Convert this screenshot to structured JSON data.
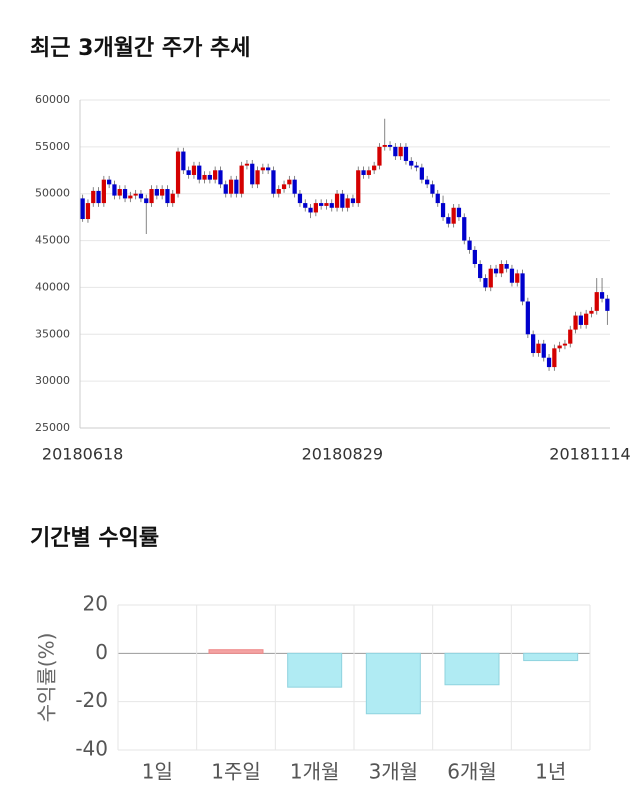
{
  "chart_data": [
    {
      "type": "candlestick",
      "title": "최근 3개월간 주가 추세",
      "categories": [
        "20180618",
        null,
        null,
        null,
        null,
        null,
        null,
        null,
        null,
        null,
        null,
        null,
        null,
        null,
        null,
        null,
        null,
        null,
        null,
        null,
        null,
        null,
        null,
        null,
        null,
        null,
        null,
        null,
        null,
        null,
        null,
        null,
        null,
        null,
        null,
        null,
        null,
        null,
        null,
        null,
        null,
        null,
        null,
        null,
        null,
        null,
        null,
        null,
        null,
        "20180829",
        null,
        null,
        null,
        null,
        null,
        null,
        null,
        null,
        null,
        null,
        null,
        null,
        null,
        null,
        null,
        null,
        null,
        null,
        null,
        null,
        null,
        null,
        null,
        null,
        null,
        null,
        null,
        null,
        null,
        null,
        null,
        null,
        null,
        null,
        null,
        null,
        null,
        null,
        null,
        null,
        null,
        null,
        null,
        null,
        null,
        null,
        "20181114",
        null,
        null,
        null
      ],
      "open": [
        49500,
        47300,
        49000,
        50300,
        49000,
        51500,
        51000,
        49800,
        50500,
        49500,
        49800,
        50000,
        49500,
        49000,
        50500,
        49800,
        50500,
        49000,
        50000,
        54500,
        52500,
        52000,
        53000,
        51500,
        52000,
        51500,
        52500,
        51000,
        50000,
        51500,
        50000,
        53000,
        53200,
        51000,
        52500,
        52800,
        52500,
        50000,
        50500,
        51000,
        51500,
        50000,
        49000,
        48500,
        48000,
        49000,
        48700,
        49000,
        48500,
        50000,
        48500,
        49500,
        49000,
        52500,
        52000,
        52500,
        53000,
        55000,
        55200,
        55000,
        54000,
        55000,
        53500,
        53000,
        52800,
        51500,
        51000,
        50000,
        49000,
        47500,
        46800,
        48500,
        47500,
        45000,
        44000,
        42500,
        41000,
        40000,
        42000,
        41500,
        42500,
        42000,
        40500,
        41500,
        38500,
        35000,
        33000,
        34000,
        32500,
        31500,
        33500,
        33800,
        34000,
        35500,
        37000,
        36000,
        37200,
        37500,
        39500,
        38800
      ],
      "high": [
        49900,
        49400,
        50700,
        50700,
        51900,
        51900,
        51400,
        50900,
        50900,
        50200,
        50400,
        50400,
        49900,
        50900,
        50900,
        50900,
        50900,
        50400,
        54900,
        54900,
        52900,
        53400,
        53400,
        52400,
        52400,
        52900,
        52900,
        51400,
        51900,
        51900,
        53400,
        53600,
        53600,
        52900,
        53200,
        53200,
        52900,
        50900,
        51400,
        51900,
        51900,
        50400,
        49400,
        48900,
        49400,
        49400,
        49400,
        49400,
        50400,
        50400,
        49900,
        49900,
        52900,
        52900,
        52900,
        53400,
        55400,
        58000,
        55600,
        55400,
        55400,
        55400,
        53900,
        53400,
        53200,
        51900,
        51400,
        50400,
        49800,
        47900,
        48900,
        48900,
        47900,
        45400,
        44400,
        42900,
        41400,
        42400,
        42400,
        42900,
        42900,
        42400,
        41900,
        41900,
        38900,
        35400,
        34400,
        34400,
        32900,
        33900,
        34200,
        34400,
        35900,
        37400,
        37400,
        37600,
        37900,
        41000,
        41000,
        39200
      ],
      "low": [
        47000,
        46900,
        48600,
        48600,
        48600,
        50600,
        49400,
        49400,
        49100,
        49100,
        49400,
        49100,
        45700,
        48600,
        49400,
        49400,
        48600,
        48600,
        49600,
        52100,
        51600,
        51600,
        51100,
        51100,
        51100,
        51100,
        50600,
        49600,
        49600,
        49600,
        49600,
        52600,
        50600,
        50600,
        52100,
        52100,
        49600,
        49600,
        50100,
        50600,
        49600,
        48600,
        48100,
        47400,
        47600,
        48300,
        48300,
        48100,
        48100,
        48100,
        48100,
        48600,
        48600,
        51600,
        51600,
        52100,
        52600,
        54600,
        54600,
        53600,
        53600,
        53100,
        52600,
        52400,
        51100,
        50600,
        49600,
        48600,
        47100,
        46400,
        46400,
        47100,
        44600,
        43600,
        42100,
        40600,
        39600,
        39600,
        41100,
        41100,
        41600,
        40100,
        40100,
        38100,
        34600,
        32600,
        32600,
        32100,
        31100,
        31100,
        33100,
        33400,
        33600,
        35100,
        35600,
        35600,
        36800,
        37100,
        38400,
        36000
      ],
      "close": [
        47300,
        49000,
        50300,
        49000,
        51500,
        51000,
        49800,
        50500,
        49500,
        49800,
        50000,
        49500,
        49000,
        50500,
        49800,
        50500,
        49000,
        50000,
        54500,
        52500,
        52000,
        53000,
        51500,
        52000,
        51500,
        52500,
        51000,
        50000,
        51500,
        50000,
        53000,
        53200,
        51000,
        52500,
        52800,
        52500,
        50000,
        50500,
        51000,
        51500,
        50000,
        49000,
        48500,
        48000,
        49000,
        48700,
        49000,
        48500,
        50000,
        48500,
        49500,
        49000,
        52500,
        52000,
        52500,
        53000,
        55000,
        55200,
        55000,
        54000,
        55000,
        53500,
        53000,
        52800,
        51500,
        51000,
        50000,
        49000,
        47500,
        46800,
        48500,
        47500,
        45000,
        44000,
        42500,
        41000,
        40000,
        42000,
        41500,
        42500,
        42000,
        40500,
        41500,
        38500,
        35000,
        33000,
        34000,
        32500,
        31500,
        33500,
        33800,
        34000,
        35500,
        37000,
        36000,
        37200,
        37500,
        39500,
        38800,
        37500
      ],
      "up_color": "#d40000",
      "down_color": "#0000cc",
      "ylim": [
        25000,
        60000
      ],
      "yticks": [
        25000,
        30000,
        35000,
        40000,
        45000,
        50000,
        55000,
        60000
      ],
      "grid": true
    },
    {
      "type": "bar",
      "title": "기간별 수익률",
      "y_label": "수익률(%)",
      "categories": [
        "1일",
        "1주일",
        "1개월",
        "3개월",
        "6개월",
        "1년"
      ],
      "values": [
        0,
        1.5,
        -14,
        -25,
        -13,
        -3
      ],
      "positive_color": "#f4a3a3",
      "negative_color": "#b0ebf3",
      "ylim": [
        -40,
        20
      ],
      "yticks": [
        20,
        0,
        -20,
        -40
      ],
      "grid": true
    }
  ]
}
